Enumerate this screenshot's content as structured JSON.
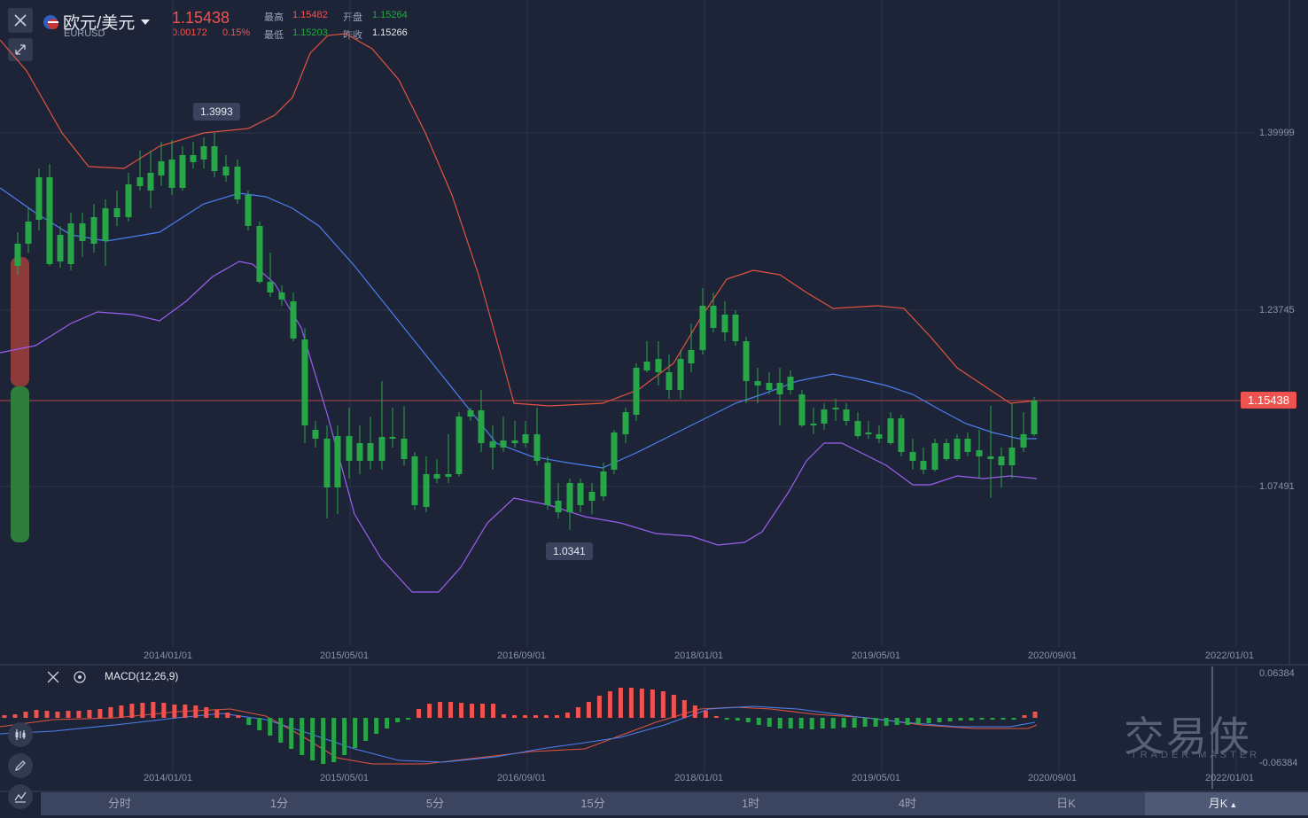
{
  "header": {
    "pair_name": "欧元/美元",
    "pair_code": "EURUSD",
    "price": "1.15438",
    "change": "0.00172",
    "change_pct": "0.15%",
    "high_label": "最高",
    "high_value": "1.15482",
    "open_label": "开盘",
    "open_value": "1.15264",
    "low_label": "最低",
    "low_value": "1.15203",
    "prev_close_label": "昨收",
    "prev_close_value": "1.15266"
  },
  "colors": {
    "up": "#ef5350",
    "down": "#26a646",
    "mid": "#4c7ff0",
    "lower": "#9b5ff0",
    "upper": "#e0533f",
    "bg": "#1e2437"
  },
  "icons": {
    "close": "close-icon",
    "collapse": "collapse-icon",
    "candle": "candlestick-icon",
    "draw": "pencil-icon",
    "indicator": "indicator-icon",
    "settings": "settings-icon"
  },
  "chart": {
    "y_ticks": [
      "1.39999",
      "1.23745",
      "1.07491"
    ],
    "x_ticks": [
      "2014/01/01",
      "2015/05/01",
      "2016/09/01",
      "2018/01/01",
      "2019/05/01",
      "2020/09/01",
      "2022/01/01"
    ],
    "current_price_label": "1.15438",
    "high_marker": "1.3993",
    "low_marker": "1.0341"
  },
  "macd": {
    "label": "MACD(12,26,9)",
    "y_top": "0.06384",
    "y_bottom": "-0.06384"
  },
  "watermark": {
    "title": "交易侠",
    "subtitle": "TRADER MASTER"
  },
  "tabs": [
    {
      "label": "分时"
    },
    {
      "label": "1分"
    },
    {
      "label": "5分"
    },
    {
      "label": "15分"
    },
    {
      "label": "1时"
    },
    {
      "label": "4时"
    },
    {
      "label": "日K"
    },
    {
      "label": "月K"
    }
  ],
  "chart_data": {
    "type": "candlestick",
    "x_ticks": [
      "2014/01/01",
      "2015/05/01",
      "2016/09/01",
      "2018/01/01",
      "2019/05/01",
      "2020/09/01",
      "2022/01/01"
    ],
    "y_ticks": [
      1.39999,
      1.23745,
      1.07491
    ],
    "last": 1.15438,
    "max_marker": 1.3993,
    "min_marker": 1.0341
  }
}
